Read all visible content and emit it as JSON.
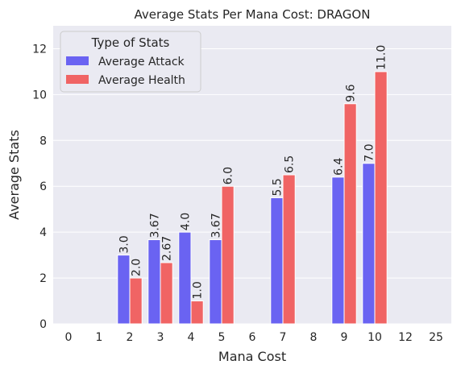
{
  "chart_data": {
    "type": "bar",
    "title": "Average Stats Per Mana Cost: DRAGON",
    "xlabel": "Mana Cost",
    "ylabel": "Average Stats",
    "categories": [
      "0",
      "1",
      "2",
      "3",
      "4",
      "5",
      "6",
      "7",
      "8",
      "9",
      "10",
      "12",
      "25"
    ],
    "ylim": [
      0,
      13
    ],
    "yticks": [
      0,
      2,
      4,
      6,
      8,
      10,
      12
    ],
    "grid": true,
    "legend_title": "Type of Stats",
    "legend_placement": "top-left",
    "series": [
      {
        "name": "Average Attack",
        "color": "#6a63f2",
        "values": [
          null,
          null,
          3.0,
          3.67,
          4.0,
          3.67,
          null,
          5.5,
          null,
          6.4,
          7.0,
          null,
          null
        ],
        "labels": [
          "",
          "",
          "3.0",
          "3.67",
          "4.0",
          "3.67",
          "",
          "5.5",
          "",
          "6.4",
          "7.0",
          "",
          ""
        ]
      },
      {
        "name": "Average Health",
        "color": "#f06464",
        "values": [
          null,
          null,
          2.0,
          2.67,
          1.0,
          6.0,
          null,
          6.5,
          null,
          9.6,
          11.0,
          null,
          null
        ],
        "labels": [
          "",
          "",
          "2.0",
          "2.67",
          "1.0",
          "6.0",
          "",
          "6.5",
          "",
          "9.6",
          "11.0",
          "",
          ""
        ]
      }
    ]
  }
}
